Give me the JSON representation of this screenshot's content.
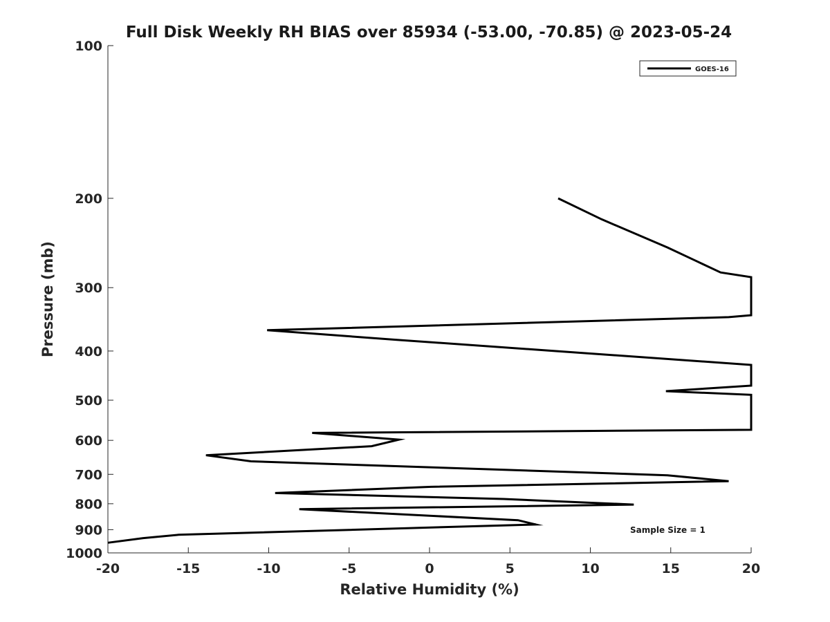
{
  "chart_data": {
    "type": "line",
    "title": "Full Disk Weekly RH BIAS over 85934 (-53.00, -70.85) @ 2023-05-24",
    "xlabel": "Relative Humidity (%)",
    "ylabel": "Pressure (mb)",
    "xlim": [
      -20,
      20
    ],
    "ylim": [
      1000,
      100
    ],
    "y_scale": "log",
    "y_reversed": true,
    "grid": false,
    "legend_position": "top-right",
    "x_ticks": [
      "-20",
      "-15",
      "-10",
      "-5",
      "0",
      "5",
      "10",
      "15",
      "20"
    ],
    "y_ticks": [
      "100",
      "200",
      "300",
      "400",
      "500",
      "600",
      "700",
      "800",
      "900",
      "1000"
    ],
    "series": [
      {
        "name": "GOES-16",
        "color": "#000000",
        "points": [
          [
            8.0,
            200
          ],
          [
            10.7,
            220
          ],
          [
            14.8,
            250
          ],
          [
            16.5,
            265
          ],
          [
            18.1,
            280
          ],
          [
            20.0,
            286
          ],
          [
            20.0,
            340
          ],
          [
            18.6,
            343
          ],
          [
            -10.1,
            364
          ],
          [
            -2.1,
            380
          ],
          [
            20.0,
            426
          ],
          [
            20.0,
            468
          ],
          [
            14.7,
            480
          ],
          [
            20.0,
            488
          ],
          [
            20.0,
            572
          ],
          [
            -7.3,
            580
          ],
          [
            -1.9,
            598
          ],
          [
            -3.6,
            616
          ],
          [
            -13.9,
            642
          ],
          [
            -11.1,
            660
          ],
          [
            14.8,
            703
          ],
          [
            18.6,
            722
          ],
          [
            0.1,
            741
          ],
          [
            -9.6,
            762
          ],
          [
            4.6,
            783
          ],
          [
            12.7,
            803
          ],
          [
            -8.1,
            820
          ],
          [
            5.5,
            862
          ],
          [
            6.6,
            879
          ],
          [
            -15.6,
            921
          ],
          [
            -17.8,
            935
          ],
          [
            -20.0,
            955
          ]
        ]
      }
    ],
    "annotations": [
      "Sample Size = 1"
    ]
  }
}
